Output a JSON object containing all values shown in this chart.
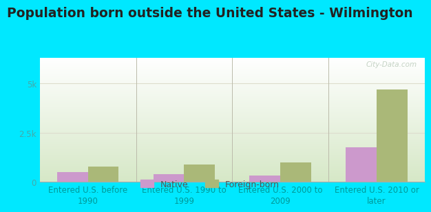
{
  "title": "Population born outside the United States - Wilmington",
  "categories": [
    "Entered U.S. before\n1990",
    "Entered U.S. 1990 to\n1999",
    "Entered U.S. 2000 to\n2009",
    "Entered U.S. 2010 or\nlater"
  ],
  "native_values": [
    480,
    380,
    320,
    1750
  ],
  "foreign_values": [
    780,
    880,
    1000,
    4700
  ],
  "native_color": "#cc99cc",
  "foreign_color": "#aab878",
  "ylim": [
    0,
    6300
  ],
  "yticks": [
    0,
    2500,
    5000
  ],
  "ytick_labels": [
    "0",
    "2.5k",
    "5k"
  ],
  "bar_width": 0.32,
  "background_color": "#00e8ff",
  "grid_color": "#ddddcc",
  "title_fontsize": 13.5,
  "tick_label_fontsize": 8.5,
  "legend_fontsize": 9,
  "watermark": "City-Data.com",
  "ytick_color": "#44aaaa",
  "xtick_color": "#009999"
}
